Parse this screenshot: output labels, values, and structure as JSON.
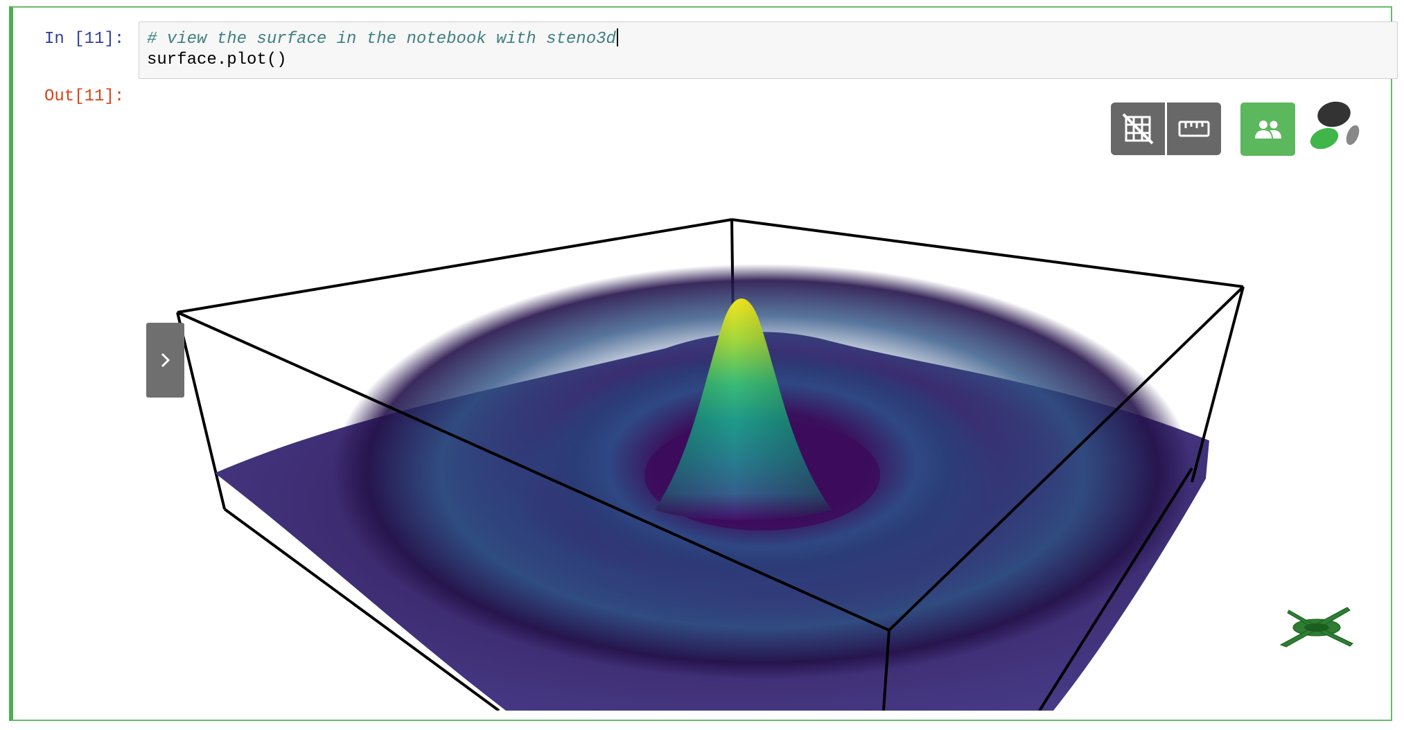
{
  "cell": {
    "input_prompt": "In [11]:",
    "output_prompt": "Out[11]:",
    "code_comment": "# view the surface in the notebook with steno3d",
    "code_line": "surface.plot()"
  },
  "viewer": {
    "toolbar": {
      "grid_toggle_icon": "grid-off-icon",
      "ruler_icon": "ruler-icon",
      "collaborate_icon": "people-icon"
    },
    "logo_icon": "steno3d-logo",
    "side_panel_icon": "chevron-right-icon",
    "orientation_widget_icon": "axes-orientation-icon",
    "colormap": "viridis",
    "colors": {
      "button_dark": "#686868",
      "button_green": "#5cb85c",
      "cell_border": "#4caf50",
      "logo_dark": "#333333",
      "logo_green": "#3fb54a",
      "logo_gray": "#888888"
    }
  }
}
